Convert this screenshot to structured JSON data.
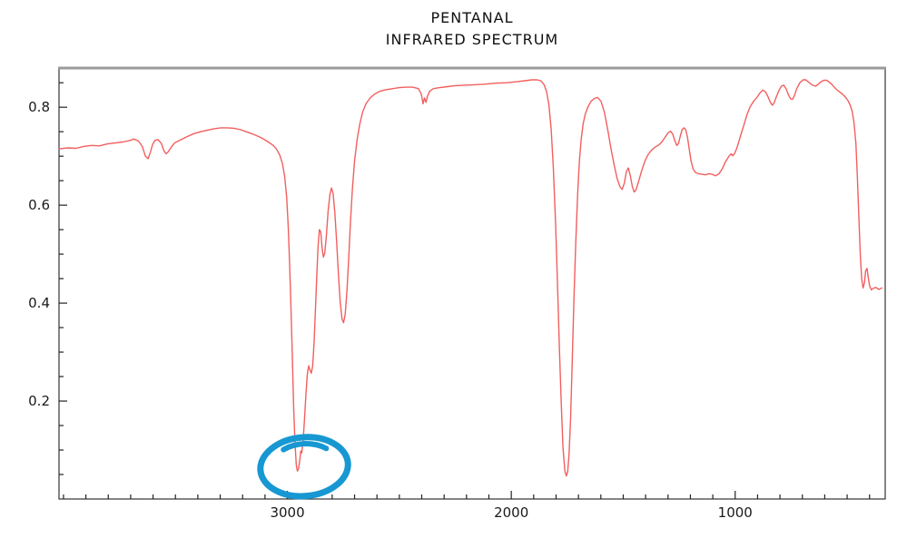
{
  "page": {
    "background": "#ffffff"
  },
  "chart_data": {
    "type": "line",
    "title": "PENTANAL",
    "subtitle": "INFRARED SPECTRUM",
    "line_color": "#f25f5f",
    "frame_color": "#333333",
    "frame_top_color": "#9b9b9b",
    "axis_text_color": "#1a1a1a",
    "xlabel": "",
    "ylabel": "",
    "x_axis": {
      "range": [
        4020,
        330
      ],
      "direction": "decreasing-left-to-right",
      "major_ticks": [
        3000,
        2000,
        1000
      ],
      "tick_labels": [
        "3000",
        "2000",
        "1000"
      ],
      "minor_tick_step": 100
    },
    "y_axis": {
      "range": [
        0,
        0.88
      ],
      "major_ticks": [
        0.2,
        0.4,
        0.6,
        0.8
      ],
      "tick_labels": [
        "0.2",
        "0.4",
        "0.6",
        "0.8"
      ],
      "minor_tick_step": 0.05
    },
    "grid": false,
    "legend": false,
    "series": [
      {
        "name": "pentanal-ir-transmittance",
        "points": [
          [
            4020,
            0.715
          ],
          [
            3980,
            0.717
          ],
          [
            3945,
            0.716
          ],
          [
            3910,
            0.72
          ],
          [
            3875,
            0.722
          ],
          [
            3840,
            0.721
          ],
          [
            3805,
            0.725
          ],
          [
            3770,
            0.727
          ],
          [
            3735,
            0.729
          ],
          [
            3705,
            0.732
          ],
          [
            3685,
            0.735
          ],
          [
            3665,
            0.731
          ],
          [
            3648,
            0.72
          ],
          [
            3634,
            0.7
          ],
          [
            3622,
            0.695
          ],
          [
            3612,
            0.708
          ],
          [
            3602,
            0.724
          ],
          [
            3592,
            0.732
          ],
          [
            3578,
            0.734
          ],
          [
            3563,
            0.726
          ],
          [
            3552,
            0.712
          ],
          [
            3542,
            0.705
          ],
          [
            3532,
            0.709
          ],
          [
            3518,
            0.719
          ],
          [
            3504,
            0.727
          ],
          [
            3478,
            0.733
          ],
          [
            3448,
            0.74
          ],
          [
            3418,
            0.746
          ],
          [
            3388,
            0.75
          ],
          [
            3358,
            0.753
          ],
          [
            3328,
            0.756
          ],
          [
            3298,
            0.758
          ],
          [
            3268,
            0.758
          ],
          [
            3238,
            0.757
          ],
          [
            3208,
            0.754
          ],
          [
            3178,
            0.749
          ],
          [
            3148,
            0.744
          ],
          [
            3118,
            0.738
          ],
          [
            3088,
            0.73
          ],
          [
            3063,
            0.722
          ],
          [
            3048,
            0.714
          ],
          [
            3034,
            0.702
          ],
          [
            3022,
            0.685
          ],
          [
            3012,
            0.658
          ],
          [
            3003,
            0.615
          ],
          [
            2996,
            0.555
          ],
          [
            2990,
            0.48
          ],
          [
            2984,
            0.39
          ],
          [
            2978,
            0.29
          ],
          [
            2972,
            0.19
          ],
          [
            2966,
            0.115
          ],
          [
            2960,
            0.068
          ],
          [
            2955,
            0.057
          ],
          [
            2950,
            0.062
          ],
          [
            2945,
            0.078
          ],
          [
            2940,
            0.098
          ],
          [
            2936,
            0.094
          ],
          [
            2931,
            0.112
          ],
          [
            2924,
            0.16
          ],
          [
            2917,
            0.215
          ],
          [
            2911,
            0.255
          ],
          [
            2905,
            0.272
          ],
          [
            2899,
            0.263
          ],
          [
            2893,
            0.257
          ],
          [
            2887,
            0.272
          ],
          [
            2881,
            0.318
          ],
          [
            2875,
            0.385
          ],
          [
            2869,
            0.455
          ],
          [
            2863,
            0.515
          ],
          [
            2857,
            0.55
          ],
          [
            2851,
            0.545
          ],
          [
            2845,
            0.512
          ],
          [
            2839,
            0.494
          ],
          [
            2833,
            0.502
          ],
          [
            2826,
            0.538
          ],
          [
            2818,
            0.588
          ],
          [
            2810,
            0.622
          ],
          [
            2803,
            0.635
          ],
          [
            2796,
            0.624
          ],
          [
            2788,
            0.585
          ],
          [
            2780,
            0.525
          ],
          [
            2772,
            0.458
          ],
          [
            2764,
            0.402
          ],
          [
            2756,
            0.368
          ],
          [
            2749,
            0.36
          ],
          [
            2742,
            0.377
          ],
          [
            2734,
            0.423
          ],
          [
            2726,
            0.492
          ],
          [
            2718,
            0.568
          ],
          [
            2710,
            0.632
          ],
          [
            2700,
            0.69
          ],
          [
            2689,
            0.732
          ],
          [
            2677,
            0.765
          ],
          [
            2664,
            0.79
          ],
          [
            2649,
            0.807
          ],
          [
            2630,
            0.819
          ],
          [
            2610,
            0.827
          ],
          [
            2585,
            0.833
          ],
          [
            2558,
            0.836
          ],
          [
            2530,
            0.838
          ],
          [
            2500,
            0.84
          ],
          [
            2470,
            0.841
          ],
          [
            2440,
            0.841
          ],
          [
            2415,
            0.838
          ],
          [
            2402,
            0.827
          ],
          [
            2394,
            0.807
          ],
          [
            2388,
            0.819
          ],
          [
            2381,
            0.81
          ],
          [
            2374,
            0.823
          ],
          [
            2364,
            0.833
          ],
          [
            2348,
            0.838
          ],
          [
            2320,
            0.84
          ],
          [
            2285,
            0.842
          ],
          [
            2250,
            0.844
          ],
          [
            2210,
            0.845
          ],
          [
            2165,
            0.846
          ],
          [
            2120,
            0.847
          ],
          [
            2070,
            0.849
          ],
          [
            2020,
            0.85
          ],
          [
            1975,
            0.852
          ],
          [
            1940,
            0.854
          ],
          [
            1908,
            0.856
          ],
          [
            1885,
            0.856
          ],
          [
            1868,
            0.854
          ],
          [
            1853,
            0.846
          ],
          [
            1842,
            0.831
          ],
          [
            1832,
            0.805
          ],
          [
            1822,
            0.755
          ],
          [
            1812,
            0.675
          ],
          [
            1802,
            0.56
          ],
          [
            1793,
            0.43
          ],
          [
            1785,
            0.305
          ],
          [
            1777,
            0.195
          ],
          [
            1769,
            0.105
          ],
          [
            1761,
            0.058
          ],
          [
            1754,
            0.047
          ],
          [
            1748,
            0.056
          ],
          [
            1742,
            0.092
          ],
          [
            1735,
            0.165
          ],
          [
            1728,
            0.275
          ],
          [
            1720,
            0.41
          ],
          [
            1712,
            0.525
          ],
          [
            1704,
            0.62
          ],
          [
            1696,
            0.688
          ],
          [
            1688,
            0.733
          ],
          [
            1679,
            0.766
          ],
          [
            1669,
            0.787
          ],
          [
            1657,
            0.801
          ],
          [
            1644,
            0.812
          ],
          [
            1629,
            0.818
          ],
          [
            1614,
            0.82
          ],
          [
            1599,
            0.812
          ],
          [
            1584,
            0.79
          ],
          [
            1569,
            0.754
          ],
          [
            1554,
            0.714
          ],
          [
            1539,
            0.679
          ],
          [
            1527,
            0.654
          ],
          [
            1515,
            0.638
          ],
          [
            1505,
            0.632
          ],
          [
            1495,
            0.645
          ],
          [
            1486,
            0.668
          ],
          [
            1477,
            0.676
          ],
          [
            1468,
            0.659
          ],
          [
            1459,
            0.637
          ],
          [
            1451,
            0.627
          ],
          [
            1443,
            0.631
          ],
          [
            1433,
            0.646
          ],
          [
            1419,
            0.668
          ],
          [
            1404,
            0.689
          ],
          [
            1389,
            0.703
          ],
          [
            1374,
            0.712
          ],
          [
            1359,
            0.718
          ],
          [
            1344,
            0.722
          ],
          [
            1329,
            0.728
          ],
          [
            1314,
            0.738
          ],
          [
            1299,
            0.748
          ],
          [
            1289,
            0.751
          ],
          [
            1279,
            0.745
          ],
          [
            1269,
            0.731
          ],
          [
            1261,
            0.722
          ],
          [
            1253,
            0.726
          ],
          [
            1245,
            0.741
          ],
          [
            1237,
            0.754
          ],
          [
            1229,
            0.758
          ],
          [
            1221,
            0.754
          ],
          [
            1213,
            0.739
          ],
          [
            1205,
            0.714
          ],
          [
            1197,
            0.69
          ],
          [
            1188,
            0.674
          ],
          [
            1178,
            0.667
          ],
          [
            1163,
            0.664
          ],
          [
            1148,
            0.663
          ],
          [
            1133,
            0.662
          ],
          [
            1118,
            0.664
          ],
          [
            1103,
            0.663
          ],
          [
            1088,
            0.66
          ],
          [
            1073,
            0.664
          ],
          [
            1058,
            0.674
          ],
          [
            1043,
            0.689
          ],
          [
            1028,
            0.7
          ],
          [
            1018,
            0.705
          ],
          [
            1010,
            0.701
          ],
          [
            1002,
            0.706
          ],
          [
            993,
            0.716
          ],
          [
            983,
            0.731
          ],
          [
            972,
            0.748
          ],
          [
            960,
            0.765
          ],
          [
            947,
            0.785
          ],
          [
            933,
            0.801
          ],
          [
            918,
            0.812
          ],
          [
            903,
            0.82
          ],
          [
            888,
            0.83
          ],
          [
            876,
            0.835
          ],
          [
            864,
            0.831
          ],
          [
            853,
            0.821
          ],
          [
            843,
            0.81
          ],
          [
            834,
            0.804
          ],
          [
            826,
            0.809
          ],
          [
            816,
            0.821
          ],
          [
            805,
            0.834
          ],
          [
            794,
            0.843
          ],
          [
            783,
            0.845
          ],
          [
            772,
            0.837
          ],
          [
            762,
            0.825
          ],
          [
            752,
            0.817
          ],
          [
            744,
            0.816
          ],
          [
            736,
            0.823
          ],
          [
            725,
            0.838
          ],
          [
            711,
            0.85
          ],
          [
            697,
            0.856
          ],
          [
            684,
            0.856
          ],
          [
            669,
            0.85
          ],
          [
            654,
            0.845
          ],
          [
            641,
            0.843
          ],
          [
            629,
            0.847
          ],
          [
            617,
            0.852
          ],
          [
            604,
            0.855
          ],
          [
            591,
            0.855
          ],
          [
            579,
            0.851
          ],
          [
            567,
            0.846
          ],
          [
            554,
            0.839
          ],
          [
            539,
            0.833
          ],
          [
            524,
            0.828
          ],
          [
            509,
            0.821
          ],
          [
            497,
            0.814
          ],
          [
            487,
            0.805
          ],
          [
            477,
            0.791
          ],
          [
            469,
            0.768
          ],
          [
            461,
            0.727
          ],
          [
            454,
            0.655
          ],
          [
            447,
            0.57
          ],
          [
            441,
            0.497
          ],
          [
            435,
            0.45
          ],
          [
            429,
            0.431
          ],
          [
            423,
            0.441
          ],
          [
            417,
            0.466
          ],
          [
            411,
            0.471
          ],
          [
            405,
            0.45
          ],
          [
            399,
            0.434
          ],
          [
            392,
            0.427
          ],
          [
            384,
            0.43
          ],
          [
            372,
            0.432
          ],
          [
            358,
            0.428
          ],
          [
            345,
            0.431
          ]
        ]
      }
    ],
    "annotation": {
      "type": "hand-drawn-ellipse",
      "color": "#1798d2",
      "center": [
        2925,
        0.066
      ],
      "rx_wavenumbers": 196,
      "ry_transmittance": 0.06,
      "rotation_deg": -5,
      "stroke_width": 7
    }
  }
}
